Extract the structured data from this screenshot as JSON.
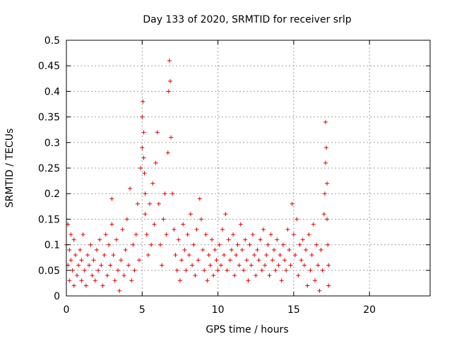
{
  "chart_data": {
    "type": "scatter",
    "title": "Day 133 of 2020, SRMTID for receiver srlp",
    "xlabel": "GPS time / hours",
    "ylabel": "SRMTID / TECUs",
    "xlim": [
      0,
      24
    ],
    "ylim": [
      0,
      0.5
    ],
    "xticks": [
      0,
      5,
      10,
      15,
      20
    ],
    "yticks": [
      0,
      0.05,
      0.1,
      0.15,
      0.2,
      0.25,
      0.3,
      0.35,
      0.4,
      0.45,
      0.5
    ],
    "xtick_labels": [
      "0",
      "5",
      "10",
      "15",
      "20"
    ],
    "ytick_labels": [
      "0",
      "0.05",
      "0.1",
      "0.15",
      "0.2",
      "0.25",
      "0.3",
      "0.35",
      "0.4",
      "0.45",
      "0.5"
    ],
    "grid": true,
    "marker": "+",
    "color": "#e00000",
    "series": [
      {
        "x": [
          0.0,
          0.1,
          0.1,
          0.2,
          0.2,
          0.3,
          0.3,
          0.4,
          0.5,
          0.5,
          0.6,
          0.7,
          0.8,
          0.9,
          1.0,
          1.0,
          1.1,
          1.2,
          1.3,
          1.4,
          1.5,
          1.6,
          1.7,
          1.8,
          1.9,
          2.0,
          2.1,
          2.2,
          2.3,
          2.4,
          2.5,
          2.6,
          2.7,
          2.8,
          2.9,
          3.0,
          3.0,
          3.1,
          3.2,
          3.3,
          3.4,
          3.5,
          3.6,
          3.7,
          3.8,
          3.9,
          4.0,
          4.1,
          4.2,
          4.3,
          4.4,
          4.5,
          4.6,
          4.7,
          4.8,
          4.9,
          5.0,
          5.0,
          5.05,
          5.1,
          5.1,
          5.15,
          5.2,
          5.2,
          5.3,
          5.4,
          5.5,
          5.6,
          5.7,
          5.8,
          5.9,
          6.0,
          6.1,
          6.2,
          6.3,
          6.4,
          6.5,
          6.6,
          6.7,
          6.75,
          6.8,
          6.85,
          6.9,
          7.0,
          7.1,
          7.2,
          7.3,
          7.4,
          7.5,
          7.6,
          7.7,
          7.8,
          7.9,
          8.0,
          8.1,
          8.2,
          8.3,
          8.4,
          8.5,
          8.6,
          8.7,
          8.8,
          8.9,
          9.0,
          9.1,
          9.2,
          9.3,
          9.4,
          9.5,
          9.6,
          9.7,
          9.8,
          9.9,
          10.0,
          10.1,
          10.2,
          10.3,
          10.4,
          10.5,
          10.6,
          10.7,
          10.8,
          10.9,
          11.0,
          11.1,
          11.2,
          11.3,
          11.4,
          11.5,
          11.6,
          11.7,
          11.8,
          11.9,
          12.0,
          12.1,
          12.2,
          12.3,
          12.4,
          12.5,
          12.6,
          12.7,
          12.8,
          12.9,
          13.0,
          13.1,
          13.2,
          13.3,
          13.4,
          13.5,
          13.6,
          13.7,
          13.8,
          13.9,
          14.0,
          14.1,
          14.2,
          14.3,
          14.4,
          14.5,
          14.6,
          14.7,
          14.8,
          14.9,
          15.0,
          15.1,
          15.2,
          15.3,
          15.4,
          15.5,
          15.6,
          15.7,
          15.8,
          15.9,
          16.0,
          16.1,
          16.2,
          16.3,
          16.4,
          16.5,
          16.6,
          16.7,
          16.8,
          16.9,
          17.0,
          17.05,
          17.1,
          17.1,
          17.15,
          17.2,
          17.2,
          17.25,
          17.3,
          17.3
        ],
        "y": [
          0.1,
          0.06,
          0.14,
          0.09,
          0.03,
          0.12,
          0.07,
          0.05,
          0.11,
          0.02,
          0.08,
          0.04,
          0.06,
          0.09,
          0.03,
          0.07,
          0.12,
          0.05,
          0.02,
          0.08,
          0.06,
          0.1,
          0.04,
          0.07,
          0.03,
          0.09,
          0.05,
          0.11,
          0.06,
          0.02,
          0.08,
          0.12,
          0.04,
          0.1,
          0.06,
          0.14,
          0.19,
          0.08,
          0.03,
          0.11,
          0.05,
          0.01,
          0.07,
          0.13,
          0.04,
          0.09,
          0.15,
          0.06,
          0.21,
          0.03,
          0.1,
          0.05,
          0.12,
          0.18,
          0.07,
          0.25,
          0.29,
          0.35,
          0.38,
          0.32,
          0.27,
          0.24,
          0.2,
          0.16,
          0.12,
          0.08,
          0.18,
          0.1,
          0.22,
          0.14,
          0.26,
          0.32,
          0.18,
          0.1,
          0.06,
          0.15,
          0.2,
          0.12,
          0.28,
          0.4,
          0.46,
          0.42,
          0.31,
          0.2,
          0.13,
          0.08,
          0.05,
          0.11,
          0.03,
          0.07,
          0.14,
          0.09,
          0.05,
          0.12,
          0.08,
          0.16,
          0.06,
          0.1,
          0.04,
          0.13,
          0.07,
          0.19,
          0.15,
          0.09,
          0.05,
          0.12,
          0.03,
          0.08,
          0.06,
          0.11,
          0.04,
          0.09,
          0.07,
          0.05,
          0.1,
          0.06,
          0.13,
          0.08,
          0.16,
          0.05,
          0.11,
          0.07,
          0.09,
          0.12,
          0.04,
          0.08,
          0.1,
          0.06,
          0.14,
          0.09,
          0.05,
          0.11,
          0.07,
          0.03,
          0.1,
          0.06,
          0.12,
          0.08,
          0.04,
          0.09,
          0.07,
          0.11,
          0.05,
          0.13,
          0.06,
          0.08,
          0.1,
          0.04,
          0.12,
          0.07,
          0.09,
          0.05,
          0.11,
          0.06,
          0.08,
          0.03,
          0.1,
          0.07,
          0.05,
          0.13,
          0.09,
          0.06,
          0.18,
          0.12,
          0.08,
          0.15,
          0.04,
          0.1,
          0.07,
          0.11,
          0.06,
          0.09,
          0.02,
          0.12,
          0.05,
          0.08,
          0.14,
          0.03,
          0.1,
          0.06,
          0.01,
          0.09,
          0.05,
          0.16,
          0.2,
          0.26,
          0.34,
          0.29,
          0.22,
          0.15,
          0.1,
          0.06,
          0.02
        ]
      }
    ]
  }
}
